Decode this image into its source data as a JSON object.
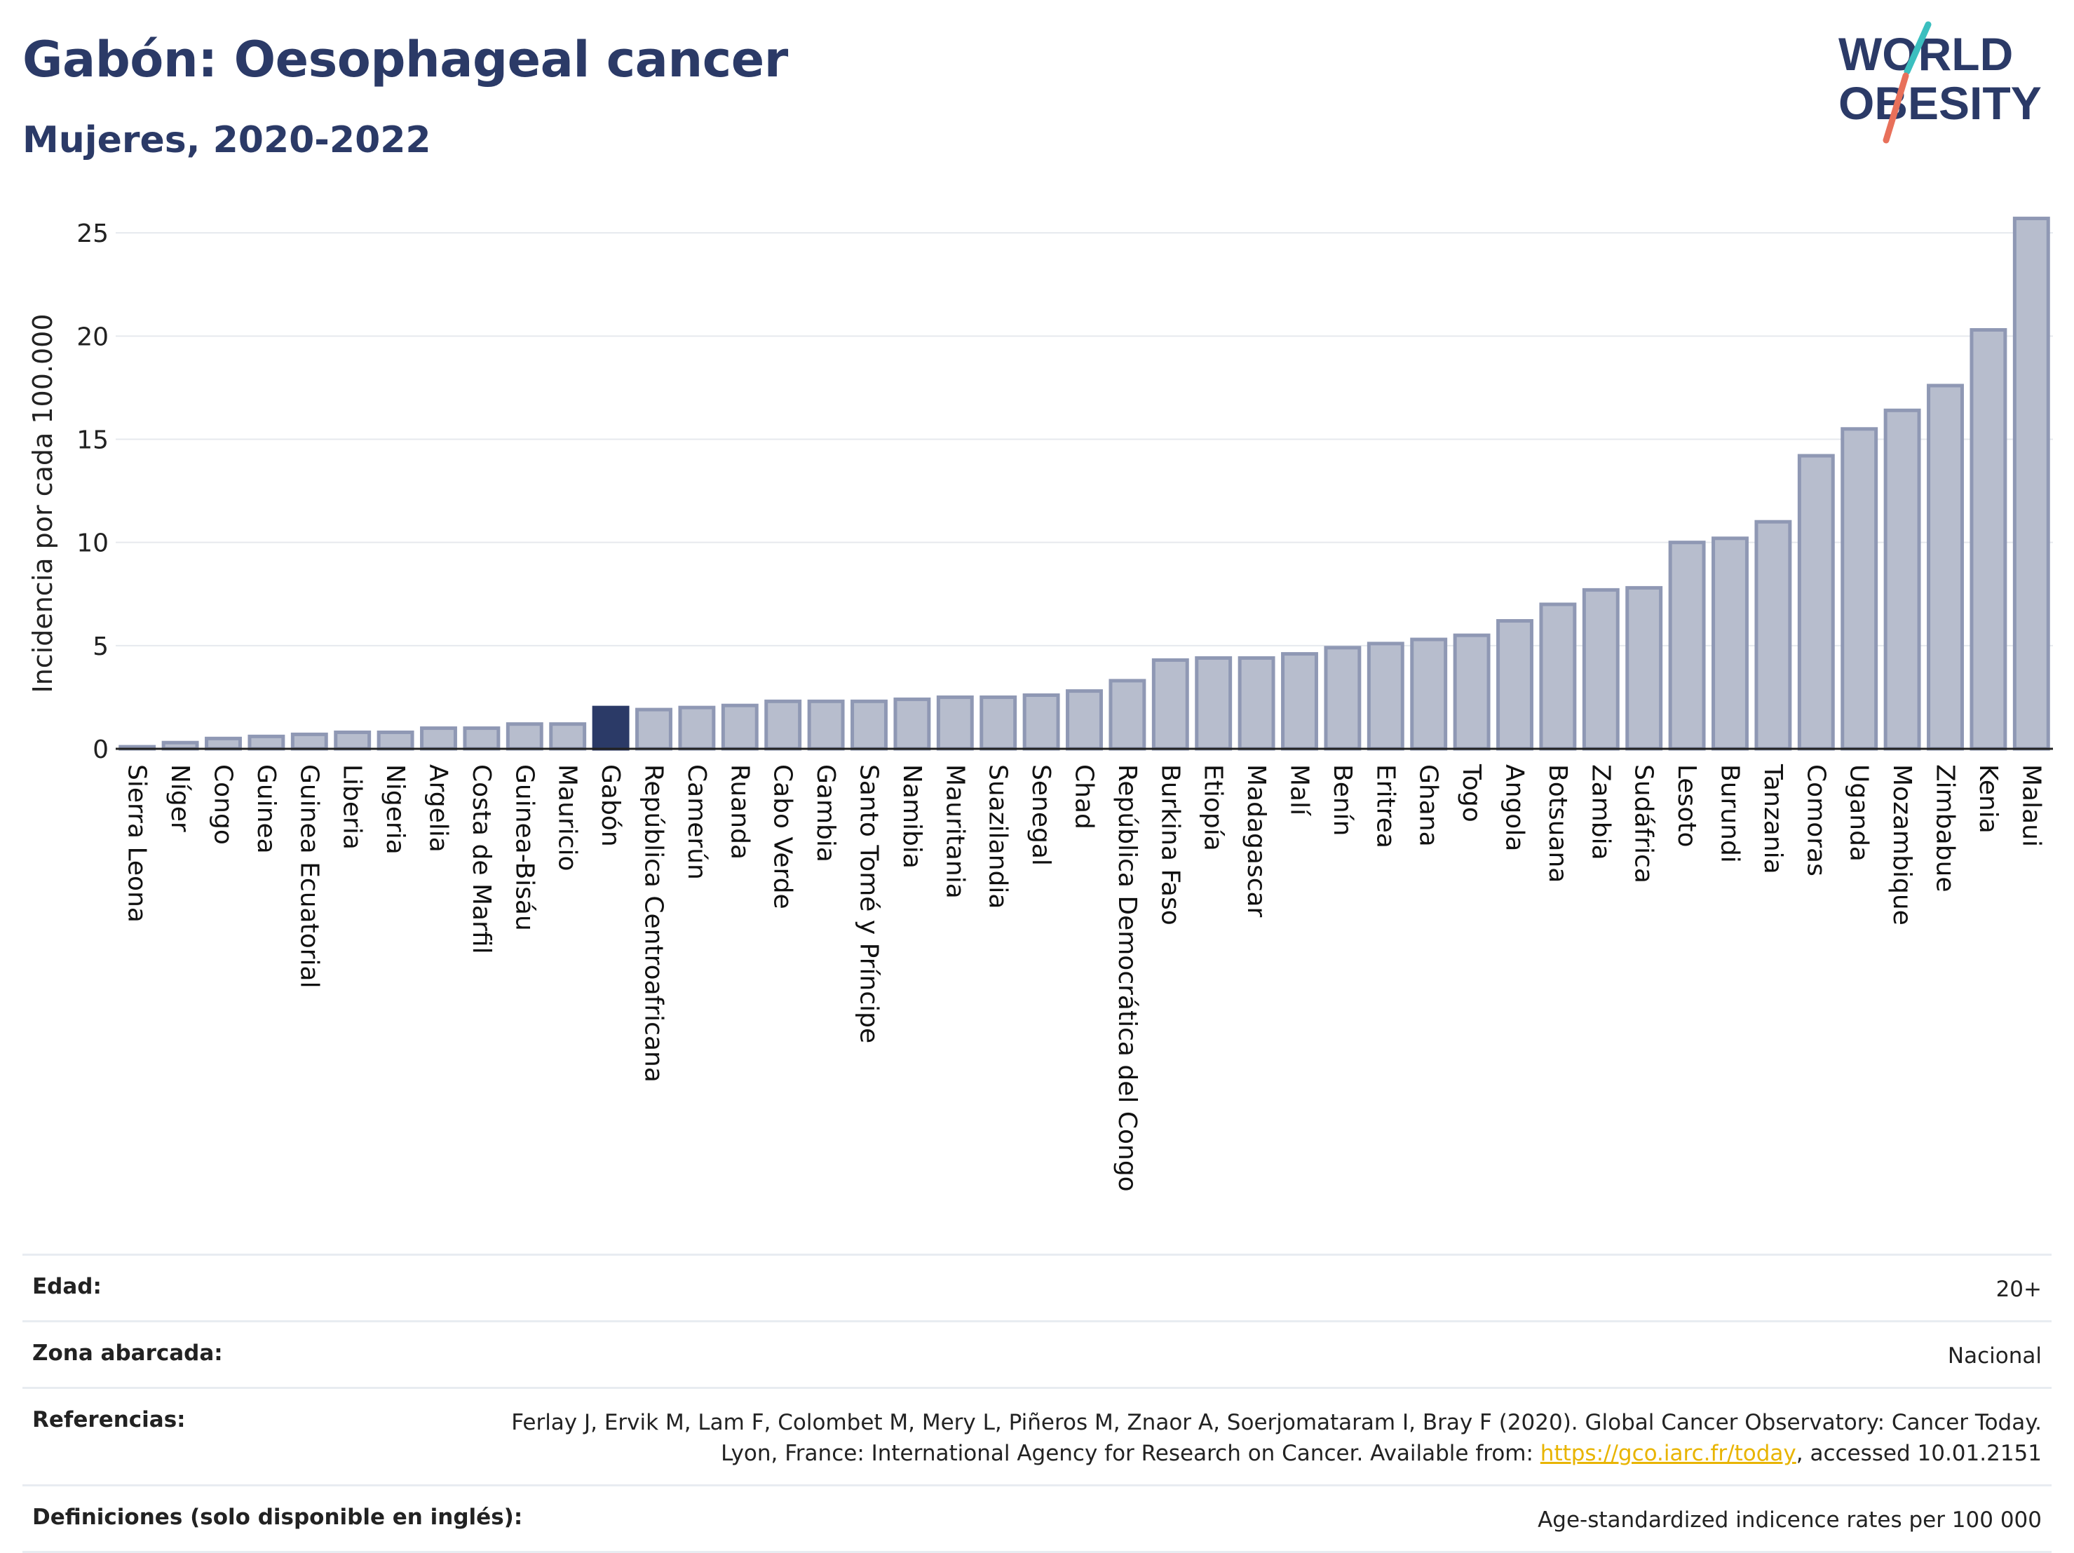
{
  "header": {
    "title": "Gabón: Oesophageal cancer",
    "subtitle": "Mujeres, 2020-2022"
  },
  "logo": {
    "line1": "WORLD",
    "line2": "OBESITY",
    "colors": [
      "#2b3a67",
      "#3bbfbf",
      "#e8705a"
    ]
  },
  "chart_data": {
    "type": "bar",
    "ylabel": "Incidencia por cada 100.000",
    "ylim": [
      0,
      26.5
    ],
    "yticks": [
      0,
      5,
      10,
      15,
      20,
      25
    ],
    "grid": true,
    "highlight": "Gabón",
    "colors": {
      "bar": "#b7bdcd",
      "bar_edge": "#8f98b4",
      "highlight": "#2b3a67"
    },
    "categories": [
      "Sierra Leona",
      "Níger",
      "Congo",
      "Guinea",
      "Guinea Ecuatorial",
      "Liberia",
      "Nigeria",
      "Argelia",
      "Costa de Marfil",
      "Guinea-Bisáu",
      "Mauricio",
      "Gabón",
      "República Centroafricana",
      "Camerún",
      "Ruanda",
      "Cabo Verde",
      "Gambia",
      "Santo Tomé y Príncipe",
      "Namibia",
      "Mauritania",
      "Suazilandia",
      "Senegal",
      "Chad",
      "República Democrática del Congo",
      "Burkina Faso",
      "Etiopía",
      "Madagascar",
      "Malí",
      "Benín",
      "Eritrea",
      "Ghana",
      "Togo",
      "Angola",
      "Botsuana",
      "Zambia",
      "Sudáfrica",
      "Lesoto",
      "Burundi",
      "Tanzania",
      "Comoras",
      "Uganda",
      "Mozambique",
      "Zimbabue",
      "Kenia",
      "Malaui"
    ],
    "values": [
      0.1,
      0.3,
      0.5,
      0.6,
      0.7,
      0.8,
      0.8,
      1.0,
      1.0,
      1.2,
      1.2,
      2.0,
      1.9,
      2.0,
      2.1,
      2.3,
      2.3,
      2.3,
      2.4,
      2.5,
      2.5,
      2.6,
      2.8,
      3.3,
      4.3,
      4.4,
      4.4,
      4.6,
      4.9,
      5.1,
      5.3,
      5.5,
      6.2,
      7.0,
      7.7,
      7.8,
      10.0,
      10.2,
      11.0,
      14.2,
      15.5,
      16.4,
      17.6,
      20.3,
      25.7
    ]
  },
  "meta": [
    {
      "label": "Edad:",
      "value": "20+"
    },
    {
      "label": "Zona abarcada:",
      "value": "Nacional"
    },
    {
      "label": "Referencias:",
      "value_pre": "Ferlay J, Ervik M, Lam F, Colombet M, Mery L, Piñeros M, Znaor A, Soerjomataram I, Bray F (2020). Global Cancer Observatory: Cancer Today. Lyon, France: International Agency for Research on Cancer. Available from: ",
      "link": "https://gco.iarc.fr/today",
      "value_post": ", accessed 10.01.2151"
    },
    {
      "label": "Definiciones (solo disponible en inglés):",
      "value": "Age-standardized indicence rates per 100 000"
    }
  ]
}
